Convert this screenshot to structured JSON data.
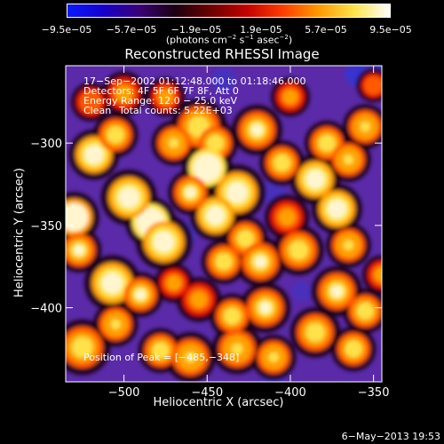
{
  "colors": {
    "colorbar_stops": [
      "#0a1aff",
      "#1500cc",
      "#3a0078",
      "#1a0010",
      "#6b0000",
      "#c40000",
      "#ff3c00",
      "#ff9800",
      "#ffe44a",
      "#ffffff"
    ],
    "background": "#000000",
    "image_base": "#5a2aa8"
  },
  "chart_data": {
    "type": "heatmap",
    "title": "Reconstructed RHESSI Image",
    "xlabel": "Heliocentric X (arcsec)",
    "ylabel": "Heliocentric Y (arcsec)",
    "xlim": [
      -535,
      -345
    ],
    "ylim": [
      -445,
      -253
    ],
    "xticks": [
      -500,
      -450,
      -400,
      -350
    ],
    "xtick_labels": [
      "−500",
      "−450",
      "−400",
      "−350"
    ],
    "yticks": [
      -300,
      -350,
      -400
    ],
    "ytick_labels": [
      "−300",
      "−350",
      "−400"
    ],
    "colorbar": {
      "ticks": [
        -9.5e-05,
        -5.7e-05,
        -1.9e-05,
        1.9e-05,
        5.7e-05,
        9.5e-05
      ],
      "tick_labels": [
        "−9.5e−05",
        "−5.7e−05",
        "−1.9e−05",
        "1.9e−05",
        "5.7e−05",
        "9.5e−05"
      ],
      "range": [
        -9.5e-05,
        9.5e-05
      ],
      "unit_prefix": "(photons cm",
      "unit_sup1": "−2",
      "unit_mid1": " s",
      "unit_sup2": "−1",
      "unit_mid2": " asec",
      "unit_sup3": "−2",
      "unit_suffix": ")"
    },
    "annotations": {
      "line1": "17−Sep−2002 01:12:48.000 to 01:18:46.000",
      "line2": "Detectors: 4F 5F 6F 7F 8F, Att 0",
      "line3": "Energy Range: 12.0 − 25.0 keV",
      "line4_a": "Clean",
      "line4_b": "Total counts: 5.22E+03",
      "peak": "Position of Peak = [−485,−348]"
    },
    "peak_position": [
      -485,
      -348
    ],
    "blobs": [
      {
        "x": -484,
        "y": -348,
        "s": 9,
        "v": 1.0
      },
      {
        "x": -476,
        "y": -360,
        "s": 10,
        "v": 0.75
      },
      {
        "x": -497,
        "y": -333,
        "s": 10,
        "v": 0.7
      },
      {
        "x": -518,
        "y": -307,
        "s": 9,
        "v": 0.65
      },
      {
        "x": -505,
        "y": -295,
        "s": 8,
        "v": 0.55
      },
      {
        "x": -530,
        "y": -345,
        "s": 9,
        "v": 0.8
      },
      {
        "x": -527,
        "y": -365,
        "s": 8,
        "v": 0.6
      },
      {
        "x": -507,
        "y": -385,
        "s": 10,
        "v": 0.65
      },
      {
        "x": -490,
        "y": -392,
        "s": 8,
        "v": 0.6
      },
      {
        "x": -505,
        "y": -410,
        "s": 8,
        "v": 0.5
      },
      {
        "x": -525,
        "y": -424,
        "s": 10,
        "v": 0.55
      },
      {
        "x": -478,
        "y": -426,
        "s": 8,
        "v": 0.55
      },
      {
        "x": -460,
        "y": -430,
        "s": 9,
        "v": 0.5
      },
      {
        "x": -455,
        "y": -290,
        "s": 10,
        "v": 0.55
      },
      {
        "x": -445,
        "y": -300,
        "s": 8,
        "v": 0.55
      },
      {
        "x": -470,
        "y": -300,
        "s": 8,
        "v": 0.5
      },
      {
        "x": -450,
        "y": -315,
        "s": 9,
        "v": 0.9
      },
      {
        "x": -432,
        "y": -330,
        "s": 10,
        "v": 0.75
      },
      {
        "x": -445,
        "y": -344,
        "s": 9,
        "v": 0.7
      },
      {
        "x": -460,
        "y": -330,
        "s": 8,
        "v": 0.6
      },
      {
        "x": -427,
        "y": -358,
        "s": 8,
        "v": 0.55
      },
      {
        "x": -418,
        "y": -372,
        "s": 9,
        "v": 0.6
      },
      {
        "x": -440,
        "y": -372,
        "s": 8,
        "v": 0.55
      },
      {
        "x": -420,
        "y": -292,
        "s": 9,
        "v": 0.6
      },
      {
        "x": -405,
        "y": -312,
        "s": 8,
        "v": 0.55
      },
      {
        "x": -385,
        "y": -322,
        "s": 9,
        "v": 0.7
      },
      {
        "x": -378,
        "y": -300,
        "s": 8,
        "v": 0.55
      },
      {
        "x": -372,
        "y": -340,
        "s": 9,
        "v": 0.65
      },
      {
        "x": -365,
        "y": -310,
        "s": 8,
        "v": 0.5
      },
      {
        "x": -355,
        "y": -290,
        "s": 8,
        "v": 0.5
      },
      {
        "x": -402,
        "y": -345,
        "s": 8,
        "v": 0.45
      },
      {
        "x": -395,
        "y": -365,
        "s": 9,
        "v": 0.55
      },
      {
        "x": -365,
        "y": -362,
        "s": 8,
        "v": 0.5
      },
      {
        "x": -372,
        "y": -390,
        "s": 9,
        "v": 0.6
      },
      {
        "x": -355,
        "y": -402,
        "s": 8,
        "v": 0.55
      },
      {
        "x": -385,
        "y": -415,
        "s": 9,
        "v": 0.55
      },
      {
        "x": -362,
        "y": -425,
        "s": 8,
        "v": 0.55
      },
      {
        "x": -415,
        "y": -400,
        "s": 9,
        "v": 0.6
      },
      {
        "x": -435,
        "y": -405,
        "s": 8,
        "v": 0.55
      },
      {
        "x": -432,
        "y": -425,
        "s": 9,
        "v": 0.5
      },
      {
        "x": -410,
        "y": -430,
        "s": 8,
        "v": 0.5
      },
      {
        "x": -455,
        "y": -395,
        "s": 8,
        "v": 0.45
      },
      {
        "x": -500,
        "y": -270,
        "s": 8,
        "v": 0.45
      },
      {
        "x": -475,
        "y": -272,
        "s": 7,
        "v": 0.4
      },
      {
        "x": -400,
        "y": -272,
        "s": 7,
        "v": 0.4
      },
      {
        "x": -350,
        "y": -265,
        "s": 6,
        "v": 0.35
      },
      {
        "x": -520,
        "y": -275,
        "s": 7,
        "v": 0.35
      },
      {
        "x": -470,
        "y": -385,
        "s": 7,
        "v": 0.4
      },
      {
        "x": -345,
        "y": -380,
        "s": 7,
        "v": 0.45
      }
    ],
    "negative_blobs": [
      {
        "x": -360,
        "y": -258,
        "s": 6,
        "v": 0.8
      },
      {
        "x": -345,
        "y": -255,
        "s": 6,
        "v": 0.7
      },
      {
        "x": -440,
        "y": -262,
        "s": 6,
        "v": 0.5
      },
      {
        "x": -410,
        "y": -330,
        "s": 6,
        "v": 0.4
      },
      {
        "x": -463,
        "y": -355,
        "s": 6,
        "v": 0.4
      },
      {
        "x": -393,
        "y": -390,
        "s": 5,
        "v": 0.4
      },
      {
        "x": -410,
        "y": -445,
        "s": 6,
        "v": 0.5
      }
    ]
  },
  "footer": {
    "timestamp": "6−May−2013 19:53"
  }
}
